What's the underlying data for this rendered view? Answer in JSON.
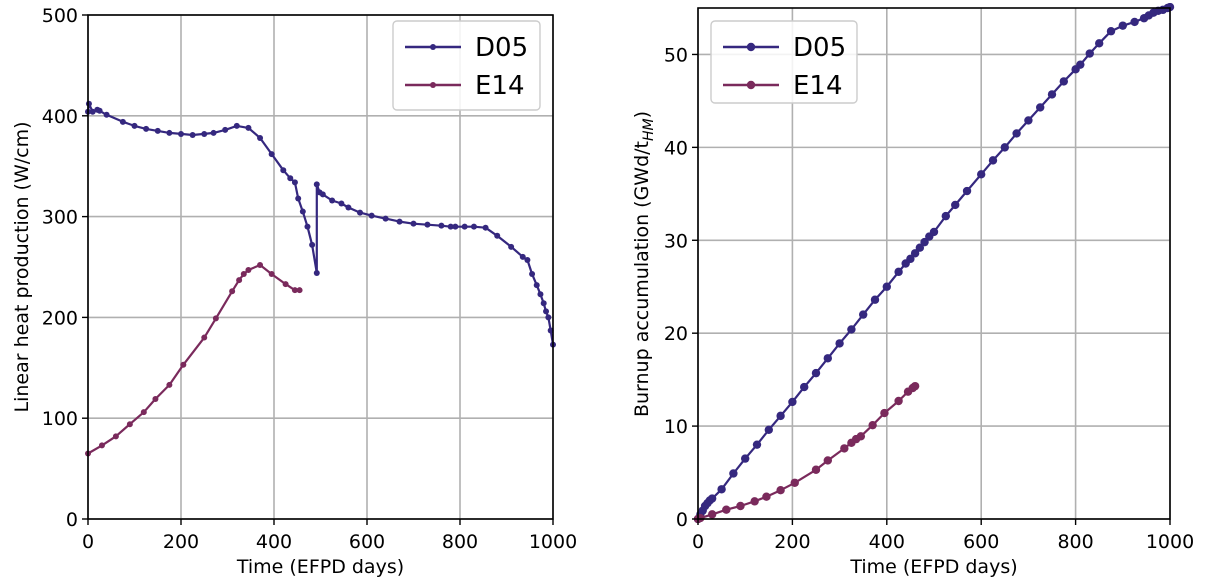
{
  "chart_data": [
    {
      "type": "line",
      "xlabel": "Time (EFPD days)",
      "ylabel": "Linear heat production (W/cm)",
      "xlim": [
        0,
        1000
      ],
      "ylim": [
        0,
        500
      ],
      "xticks": [
        "0",
        "200",
        "400",
        "600",
        "800",
        "1000"
      ],
      "yticks": [
        "0",
        "100",
        "200",
        "300",
        "400",
        "500"
      ],
      "grid": true,
      "legend_position": "top-right",
      "series": [
        {
          "name": "D05",
          "color": "#35287f",
          "x": [
            0,
            2,
            10,
            20,
            25,
            40,
            75,
            100,
            125,
            150,
            175,
            200,
            225,
            250,
            270,
            295,
            320,
            345,
            370,
            395,
            420,
            435,
            445,
            452,
            462,
            472,
            482,
            492,
            492,
            498,
            505,
            525,
            545,
            560,
            585,
            610,
            640,
            670,
            700,
            730,
            760,
            780,
            790,
            810,
            830,
            855,
            880,
            910,
            935,
            945,
            955,
            965,
            973,
            980,
            985,
            990,
            995,
            1000
          ],
          "y": [
            404,
            412,
            404,
            406,
            405,
            401,
            394,
            390,
            387,
            385,
            383,
            382,
            381,
            382,
            383,
            386,
            390,
            388,
            378,
            362,
            346,
            338,
            334,
            318,
            305,
            290,
            272,
            244,
            332,
            324,
            322,
            316,
            313,
            309,
            304,
            301,
            298,
            295,
            293,
            292,
            291,
            290,
            290,
            290,
            290,
            289,
            281,
            270,
            260,
            257,
            243,
            232,
            223,
            214,
            206,
            200,
            187,
            173
          ]
        },
        {
          "name": "E14",
          "color": "#7a2a5c",
          "x": [
            0,
            30,
            60,
            90,
            120,
            145,
            175,
            205,
            250,
            275,
            310,
            325,
            335,
            345,
            370,
            395,
            425,
            445,
            455
          ],
          "y": [
            65,
            73,
            82,
            94,
            106,
            119,
            133,
            153,
            180,
            199,
            226,
            237,
            243,
            247,
            252,
            243,
            233,
            227,
            227
          ]
        }
      ]
    },
    {
      "type": "line",
      "xlabel": "Time (EFPD days)",
      "ylabel_main": "Burnup accumulation (GWd/t",
      "ylabel_sub": "HM",
      "ylabel_end": ")",
      "xlim": [
        0,
        1000
      ],
      "ylim": [
        0,
        55
      ],
      "xticks": [
        "0",
        "200",
        "400",
        "600",
        "800",
        "1000"
      ],
      "yticks": [
        "0",
        "10",
        "20",
        "30",
        "40",
        "50"
      ],
      "grid": true,
      "legend_position": "top-left",
      "series": [
        {
          "name": "D05",
          "color": "#35287f",
          "x": [
            0,
            5,
            10,
            15,
            20,
            25,
            30,
            50,
            75,
            100,
            125,
            150,
            175,
            200,
            225,
            250,
            275,
            300,
            325,
            350,
            375,
            400,
            425,
            440,
            450,
            460,
            470,
            480,
            490,
            500,
            525,
            545,
            570,
            600,
            625,
            650,
            675,
            700,
            725,
            750,
            775,
            800,
            810,
            830,
            850,
            875,
            900,
            925,
            945,
            955,
            965,
            975,
            985,
            995,
            1000
          ],
          "y": [
            0,
            0.5,
            0.9,
            1.4,
            1.7,
            2.0,
            2.2,
            3.2,
            4.9,
            6.5,
            8.0,
            9.6,
            11.1,
            12.6,
            14.2,
            15.7,
            17.3,
            18.9,
            20.4,
            22.0,
            23.6,
            25.0,
            26.6,
            27.5,
            28.0,
            28.6,
            29.2,
            29.8,
            30.4,
            30.9,
            32.6,
            33.8,
            35.3,
            37.1,
            38.6,
            40.0,
            41.5,
            42.9,
            44.3,
            45.7,
            47.1,
            48.4,
            48.9,
            50.1,
            51.2,
            52.5,
            53.1,
            53.5,
            53.9,
            54.2,
            54.5,
            54.7,
            54.8,
            55.0,
            55.1
          ]
        },
        {
          "name": "E14",
          "color": "#7a2a5c",
          "x": [
            0,
            5,
            30,
            60,
            90,
            120,
            145,
            175,
            205,
            250,
            275,
            310,
            325,
            335,
            345,
            370,
            395,
            425,
            445,
            455,
            460
          ],
          "y": [
            0,
            0.1,
            0.5,
            1.0,
            1.4,
            1.9,
            2.4,
            3.1,
            3.9,
            5.3,
            6.3,
            7.6,
            8.2,
            8.6,
            8.9,
            10.1,
            11.4,
            12.7,
            13.7,
            14.1,
            14.3
          ]
        }
      ]
    }
  ]
}
